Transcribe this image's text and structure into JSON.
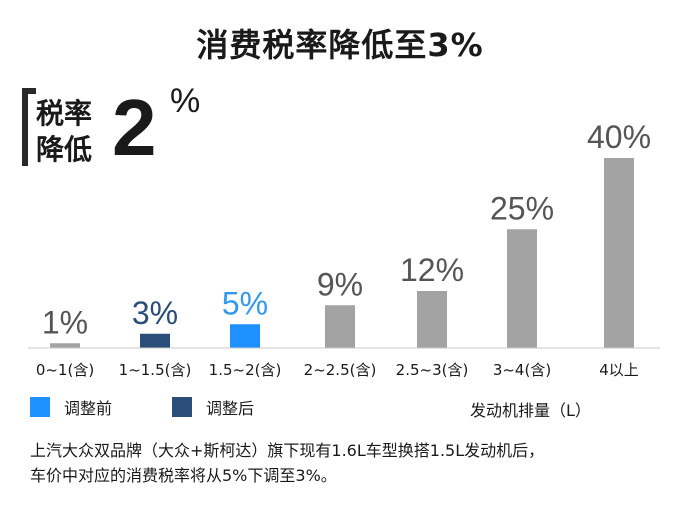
{
  "title": "消费税率降低至3%",
  "badge": {
    "line1": "税率",
    "line2": "降低",
    "number": "2",
    "unit": "%"
  },
  "colors": {
    "before": "#1e90ff",
    "after": "#2a4e78",
    "normal": "#a3a3a3",
    "before_text": "#3399ee",
    "after_text": "#2a4e78",
    "normal_text": "#555555"
  },
  "chart_data": {
    "type": "bar",
    "categories": [
      "0~1(含)",
      "1~1.5(含)",
      "1.5~2(含)",
      "2~2.5(含)",
      "2.5~3(含)",
      "3~4(含)",
      "4以上"
    ],
    "values": [
      1,
      3,
      5,
      9,
      12,
      25,
      40
    ],
    "value_labels": [
      "1%",
      "3%",
      "5%",
      "9%",
      "12%",
      "25%",
      "40%"
    ],
    "bar_groups": [
      "normal",
      "after",
      "before",
      "normal",
      "normal",
      "normal",
      "normal"
    ],
    "xlabel": "发动机排量（L）",
    "ylabel": "",
    "ylim": [
      0,
      40
    ],
    "grid": false
  },
  "legend": {
    "before": "调整前",
    "after": "调整后"
  },
  "footnote": [
    "上汽大众双品牌（大众+斯柯达）旗下现有1.6L车型换搭1.5L发动机后，",
    "车价中对应的消费税率将从5%下调至3%。"
  ]
}
